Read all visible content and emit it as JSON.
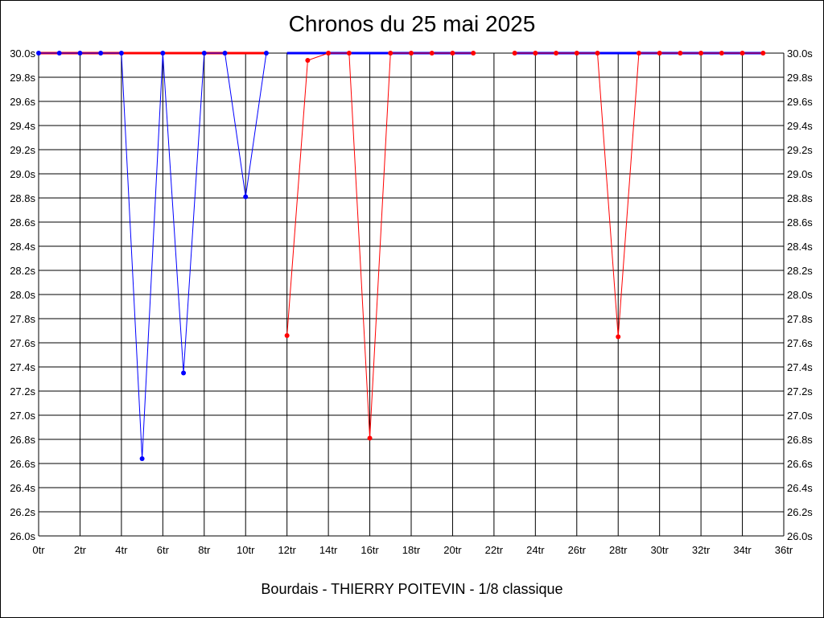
{
  "chart_data": {
    "type": "line",
    "title": "Chronos du 25 mai 2025",
    "subtitle": "Bourdais - THIERRY POITEVIN - 1/8 classique",
    "xlim": [
      0,
      36
    ],
    "ylim": [
      26.0,
      30.0
    ],
    "grid": true,
    "x_ticks": [
      "0tr",
      "2tr",
      "4tr",
      "6tr",
      "8tr",
      "10tr",
      "12tr",
      "14tr",
      "16tr",
      "18tr",
      "20tr",
      "22tr",
      "24tr",
      "26tr",
      "28tr",
      "30tr",
      "32tr",
      "34tr",
      "36tr"
    ],
    "y_ticks": [
      "26.0s",
      "26.2s",
      "26.4s",
      "26.6s",
      "26.8s",
      "27.0s",
      "27.2s",
      "27.4s",
      "27.6s",
      "27.8s",
      "28.0s",
      "28.2s",
      "28.4s",
      "28.6s",
      "28.8s",
      "29.0s",
      "29.2s",
      "29.4s",
      "29.6s",
      "29.8s",
      "30.0s"
    ],
    "series": [
      {
        "color": "#0000ff",
        "x": [
          0,
          1,
          2,
          3,
          4,
          5,
          6,
          7,
          8,
          9,
          10,
          11
        ],
        "y": [
          30.0,
          30.0,
          30.0,
          30.0,
          30.0,
          26.64,
          30.0,
          27.35,
          30.0,
          30.0,
          28.81,
          30.0
        ]
      },
      {
        "color": "#ff0000",
        "x": [
          12,
          13,
          14,
          15,
          16,
          17,
          18,
          19,
          20,
          21
        ],
        "y": [
          27.66,
          29.94,
          30.0,
          30.0,
          26.81,
          30.0,
          30.0,
          30.0,
          30.0,
          30.0
        ]
      },
      {
        "color": "#ff0000",
        "x": [
          23,
          24,
          25,
          26,
          27,
          28,
          29,
          30,
          31,
          32,
          33,
          34,
          35
        ],
        "y": [
          30.0,
          30.0,
          30.0,
          30.0,
          30.0,
          27.65,
          30.0,
          30.0,
          30.0,
          30.0,
          30.0,
          30.0,
          30.0
        ]
      }
    ],
    "max_lines": [
      {
        "color": "#ff0000",
        "x": [
          0,
          11
        ]
      },
      {
        "color": "#0000ff",
        "x": [
          12,
          21
        ]
      },
      {
        "color": "#0000ff",
        "x": [
          23,
          35
        ]
      }
    ]
  }
}
